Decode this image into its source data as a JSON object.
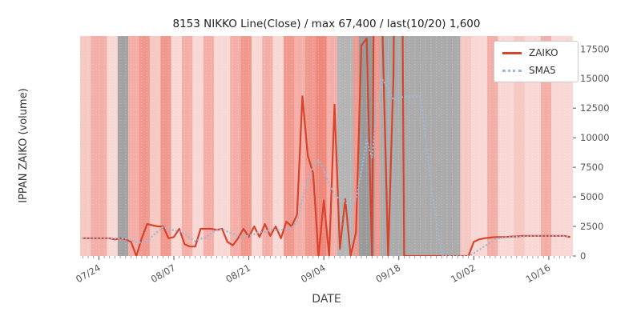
{
  "chart_data": {
    "type": "line",
    "title": "8153 NIKKO Line(Close) / max 67,400 / last(10/20) 1,600",
    "xlabel": "DATE",
    "ylabel": "IPPAN ZAIKO (volume)",
    "ylim": [
      0,
      18600
    ],
    "yticks": [
      0,
      2500,
      5000,
      7500,
      10000,
      12500,
      15000,
      17500
    ],
    "xticks": [
      "07/24",
      "08/07",
      "08/21",
      "09/04",
      "09/18",
      "10/02",
      "10/16"
    ],
    "legend_position": "upper right",
    "max_value": 67400,
    "last_value": 1600,
    "last_date": "10/20",
    "x": [
      "07/21",
      "07/22",
      "07/23",
      "07/24",
      "07/25",
      "07/26",
      "07/27",
      "07/28",
      "07/29",
      "07/30",
      "07/31",
      "08/01",
      "08/02",
      "08/03",
      "08/04",
      "08/05",
      "08/06",
      "08/07",
      "08/08",
      "08/09",
      "08/10",
      "08/11",
      "08/12",
      "08/13",
      "08/14",
      "08/15",
      "08/16",
      "08/17",
      "08/18",
      "08/19",
      "08/20",
      "08/21",
      "08/22",
      "08/23",
      "08/24",
      "08/25",
      "08/26",
      "08/27",
      "08/28",
      "08/29",
      "08/30",
      "08/31",
      "09/01",
      "09/02",
      "09/03",
      "09/04",
      "09/05",
      "09/06",
      "09/07",
      "09/08",
      "09/09",
      "09/10",
      "09/11",
      "09/12",
      "09/13",
      "09/14",
      "09/15",
      "09/16",
      "09/17",
      "09/18",
      "09/19",
      "09/20",
      "09/21",
      "09/22",
      "09/23",
      "09/24",
      "09/25",
      "09/26",
      "09/27",
      "09/28",
      "09/29",
      "09/30",
      "10/01",
      "10/02",
      "10/03",
      "10/04",
      "10/05",
      "10/06",
      "10/07",
      "10/08",
      "10/09",
      "10/10",
      "10/11",
      "10/12",
      "10/13",
      "10/14",
      "10/15",
      "10/16",
      "10/17",
      "10/18",
      "10/19",
      "10/20"
    ],
    "series": [
      {
        "name": "ZAIKO",
        "color": "#d8432c",
        "style": "solid",
        "values": [
          1500,
          1500,
          1500,
          1500,
          1500,
          1500,
          1400,
          1500,
          1400,
          1200,
          0,
          1500,
          2700,
          2600,
          2500,
          2500,
          1500,
          1600,
          2300,
          1000,
          800,
          800,
          2300,
          2300,
          2300,
          2200,
          2300,
          1200,
          900,
          1500,
          2300,
          1600,
          2500,
          1600,
          2700,
          1700,
          2500,
          1500,
          2900,
          2500,
          3500,
          13500,
          8500,
          7000,
          0,
          4700,
          0,
          12800,
          600,
          4800,
          0,
          2000,
          17800,
          18400,
          0,
          67400,
          18000,
          0,
          15300,
          67400,
          0,
          0,
          0,
          0,
          0,
          0,
          0,
          0,
          0,
          0,
          0,
          0,
          0,
          1200,
          1400,
          1500,
          1550,
          1600,
          1600,
          1600,
          1650,
          1650,
          1700,
          1700,
          1700,
          1700,
          1700,
          1700,
          1700,
          1700,
          1700,
          1600
        ]
      },
      {
        "name": "SMA5",
        "color": "#9fb8d4",
        "style": "dotted",
        "values": [
          1500,
          1500,
          1500,
          1500,
          1500,
          1500,
          1490,
          1480,
          1470,
          1380,
          1180,
          1120,
          1180,
          1700,
          2060,
          2460,
          2360,
          2160,
          2080,
          1860,
          1540,
          1240,
          1440,
          1540,
          1940,
          2180,
          2280,
          2060,
          1900,
          1640,
          1600,
          1720,
          1840,
          2060,
          2020,
          2220,
          2200,
          2220,
          2260,
          2420,
          2900,
          4800,
          6400,
          7600,
          8100,
          7300,
          6100,
          5200,
          4800,
          4600,
          4100,
          4800,
          7200,
          9800,
          8300,
          13000,
          14900,
          14200,
          13200,
          13400,
          13450,
          13480,
          13480,
          13480,
          10000,
          6000,
          3000,
          0,
          0,
          0,
          0,
          0,
          0,
          240,
          520,
          820,
          1130,
          1450,
          1530,
          1570,
          1610,
          1630,
          1650,
          1670,
          1690,
          1700,
          1700,
          1700,
          1700,
          1700,
          1700,
          1680
        ]
      }
    ],
    "background_bands": [
      {
        "from": "07/21",
        "to": "07/23",
        "color": "#f6c8c2"
      },
      {
        "from": "07/23",
        "to": "07/26",
        "color": "#f2aea7"
      },
      {
        "from": "07/26",
        "to": "07/28",
        "color": "#f8d8d4"
      },
      {
        "from": "07/28",
        "to": "07/30",
        "color": "#a2a2a2"
      },
      {
        "from": "07/30",
        "to": "08/01",
        "color": "#f2aea7"
      },
      {
        "from": "08/01",
        "to": "08/03",
        "color": "#f0988e"
      },
      {
        "from": "08/03",
        "to": "08/05",
        "color": "#f6c8c2"
      },
      {
        "from": "08/05",
        "to": "08/07",
        "color": "#f0988e"
      },
      {
        "from": "08/07",
        "to": "08/09",
        "color": "#f8d8d4"
      },
      {
        "from": "08/09",
        "to": "08/11",
        "color": "#f2aea7"
      },
      {
        "from": "08/11",
        "to": "08/13",
        "color": "#f8d8d4"
      },
      {
        "from": "08/13",
        "to": "08/15",
        "color": "#f2aea7"
      },
      {
        "from": "08/15",
        "to": "08/18",
        "color": "#f8d8d4"
      },
      {
        "from": "08/18",
        "to": "08/20",
        "color": "#f2aea7"
      },
      {
        "from": "08/20",
        "to": "08/22",
        "color": "#f0988e"
      },
      {
        "from": "08/22",
        "to": "08/24",
        "color": "#f8d8d4"
      },
      {
        "from": "08/24",
        "to": "08/26",
        "color": "#f2aea7"
      },
      {
        "from": "08/26",
        "to": "08/28",
        "color": "#f8d8d4"
      },
      {
        "from": "08/28",
        "to": "08/30",
        "color": "#f0988e"
      },
      {
        "from": "08/30",
        "to": "09/01",
        "color": "#f2aea7"
      },
      {
        "from": "09/01",
        "to": "09/03",
        "color": "#f0988e"
      },
      {
        "from": "09/03",
        "to": "09/05",
        "color": "#ee877c"
      },
      {
        "from": "09/05",
        "to": "09/07",
        "color": "#f2aea7"
      },
      {
        "from": "09/07",
        "to": "09/10",
        "color": "#b4b4b4"
      },
      {
        "from": "09/10",
        "to": "09/11",
        "color": "#f0988e"
      },
      {
        "from": "09/11",
        "to": "09/14",
        "color": "#9a9a9a"
      },
      {
        "from": "09/14",
        "to": "09/15",
        "color": "#f0988e"
      },
      {
        "from": "09/15",
        "to": "09/30",
        "color": "#ababab"
      },
      {
        "from": "09/30",
        "to": "10/02",
        "color": "#f6c8c2"
      },
      {
        "from": "10/02",
        "to": "10/05",
        "color": "#f8d8d4"
      },
      {
        "from": "10/05",
        "to": "10/07",
        "color": "#f2aea7"
      },
      {
        "from": "10/07",
        "to": "10/10",
        "color": "#f8d8d4"
      },
      {
        "from": "10/10",
        "to": "10/12",
        "color": "#f6c8c2"
      },
      {
        "from": "10/12",
        "to": "10/15",
        "color": "#f8d8d4"
      },
      {
        "from": "10/15",
        "to": "10/17",
        "color": "#f2aea7"
      },
      {
        "from": "10/17",
        "to": "10/21",
        "color": "#f8d8d4"
      }
    ]
  }
}
